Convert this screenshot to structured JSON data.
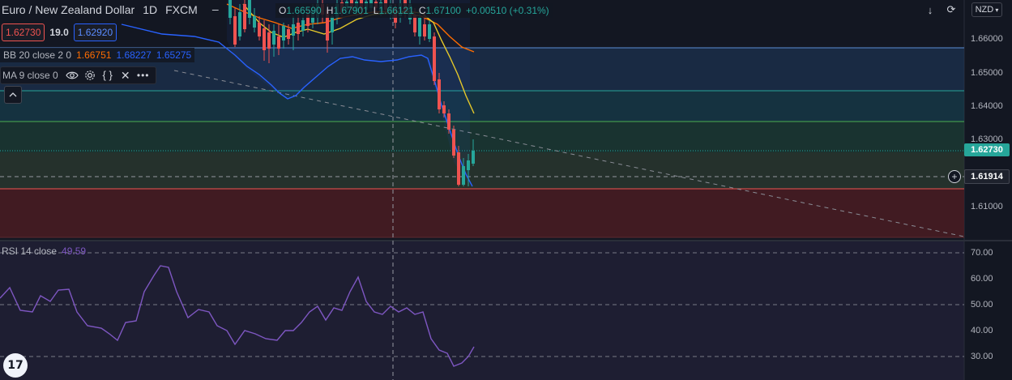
{
  "header": {
    "symbol": "Euro / New Zealand Dollar",
    "interval": "1D",
    "source": "FXCM",
    "ohlc": {
      "o_label": "O",
      "o_value": "1.66590",
      "h_label": "H",
      "h_value": "1.67901",
      "l_label": "L",
      "l_value": "1.66121",
      "c_label": "C",
      "c_value": "1.67100",
      "change": "+0.00510 (+0.31%)"
    }
  },
  "trade_box": {
    "sell_price": "1.62730",
    "spread": "19.0",
    "buy_price": "1.62920"
  },
  "indicators": {
    "bb": {
      "label": "BB 20 close 2 0",
      "basis": "1.66751",
      "upper": "1.68227",
      "lower": "1.65275"
    },
    "ma": {
      "label": "MA 9 close 0"
    },
    "rsi": {
      "label": "RSI 14 close",
      "value": "49.59"
    }
  },
  "price_axis": {
    "currency": "NZD",
    "ticks": [
      "1.66000",
      "1.65000",
      "1.64000",
      "1.63000",
      "1.61000"
    ],
    "current_price_tag": "1.62730",
    "crosshair_price_tag": "1.61914"
  },
  "rsi_axis": {
    "ticks": [
      "70.00",
      "60.00",
      "50.00",
      "40.00",
      "30.00"
    ]
  },
  "colors": {
    "background": "#131722",
    "up": "#26a69a",
    "down": "#ef5350",
    "bb_basis": "#ff6d00",
    "bb_band": "#2962ff",
    "ma": "#e5c82a",
    "rsi": "#7e57c2",
    "current_price": "#26a69a",
    "crosshair_tag": "#1e222d"
  },
  "icons": {
    "eye": "eye-icon",
    "settings": "gear-icon",
    "source_code": "braces-icon",
    "remove": "close-icon",
    "more": "more-icon",
    "collapse": "chevron-up-icon",
    "download": "arrow-down-icon",
    "refresh": "refresh-icon",
    "add_alert": "plus-circle-icon",
    "brand": "tradingview-logo-icon"
  },
  "brand_logo_text": "17"
}
